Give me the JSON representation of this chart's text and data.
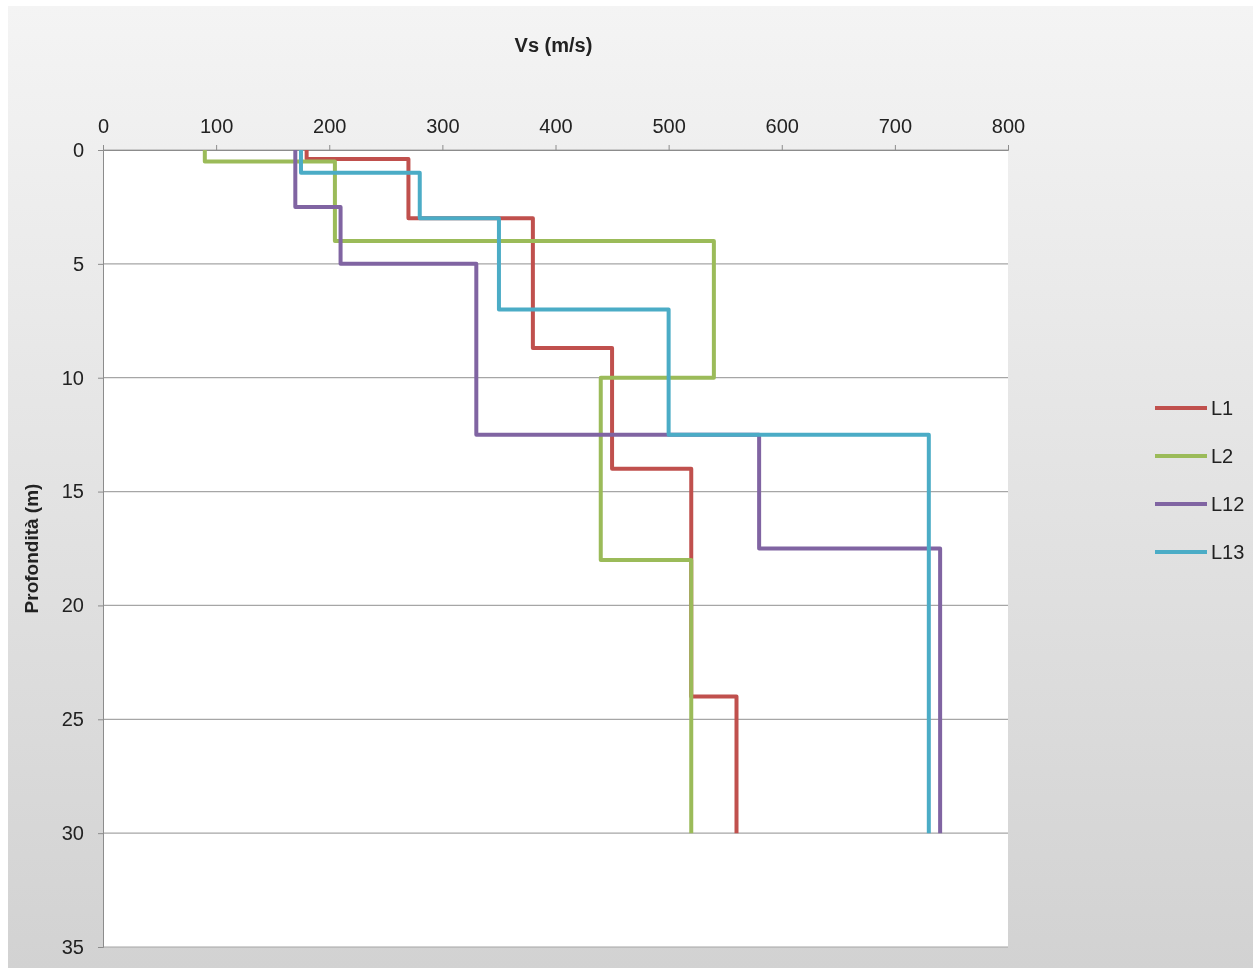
{
  "chart_data": {
    "type": "line",
    "xlabel": "Vs (m/s)",
    "ylabel": "Profondità (m)",
    "xlim": [
      0,
      800
    ],
    "xticks": [
      0,
      100,
      200,
      300,
      400,
      500,
      600,
      700,
      800
    ],
    "ylim": [
      35,
      0
    ],
    "yticks": [
      0,
      5,
      10,
      15,
      20,
      25,
      30,
      35
    ],
    "grid": "y",
    "legend": "right",
    "marker": "none",
    "line_style": "solid",
    "series": [
      {
        "name": "L1",
        "color": "#c0504d",
        "x": [
          180,
          180,
          270,
          270,
          380,
          380,
          450,
          450,
          520,
          520,
          560,
          560
        ],
        "values": [
          0,
          0.4,
          0.4,
          3,
          3,
          8.7,
          8.7,
          14,
          14,
          24,
          24,
          30
        ]
      },
      {
        "name": "L2",
        "color": "#9bbb59",
        "x": [
          90,
          90,
          205,
          205,
          540,
          540,
          440,
          440,
          520,
          520
        ],
        "values": [
          0,
          0.5,
          0.5,
          4,
          4,
          10,
          10,
          18,
          18,
          30
        ]
      },
      {
        "name": "L12",
        "color": "#8064a2",
        "x": [
          170,
          170,
          210,
          210,
          330,
          330,
          580,
          580,
          740,
          740
        ],
        "values": [
          0,
          2.5,
          2.5,
          5,
          5,
          12.5,
          12.5,
          17.5,
          17.5,
          30
        ]
      },
      {
        "name": "L13",
        "color": "#4bacc6",
        "x": [
          175,
          175,
          280,
          280,
          350,
          350,
          500,
          500,
          730,
          730
        ],
        "values": [
          0,
          1,
          1,
          3,
          3,
          7,
          7,
          12.5,
          12.5,
          30
        ]
      }
    ]
  }
}
